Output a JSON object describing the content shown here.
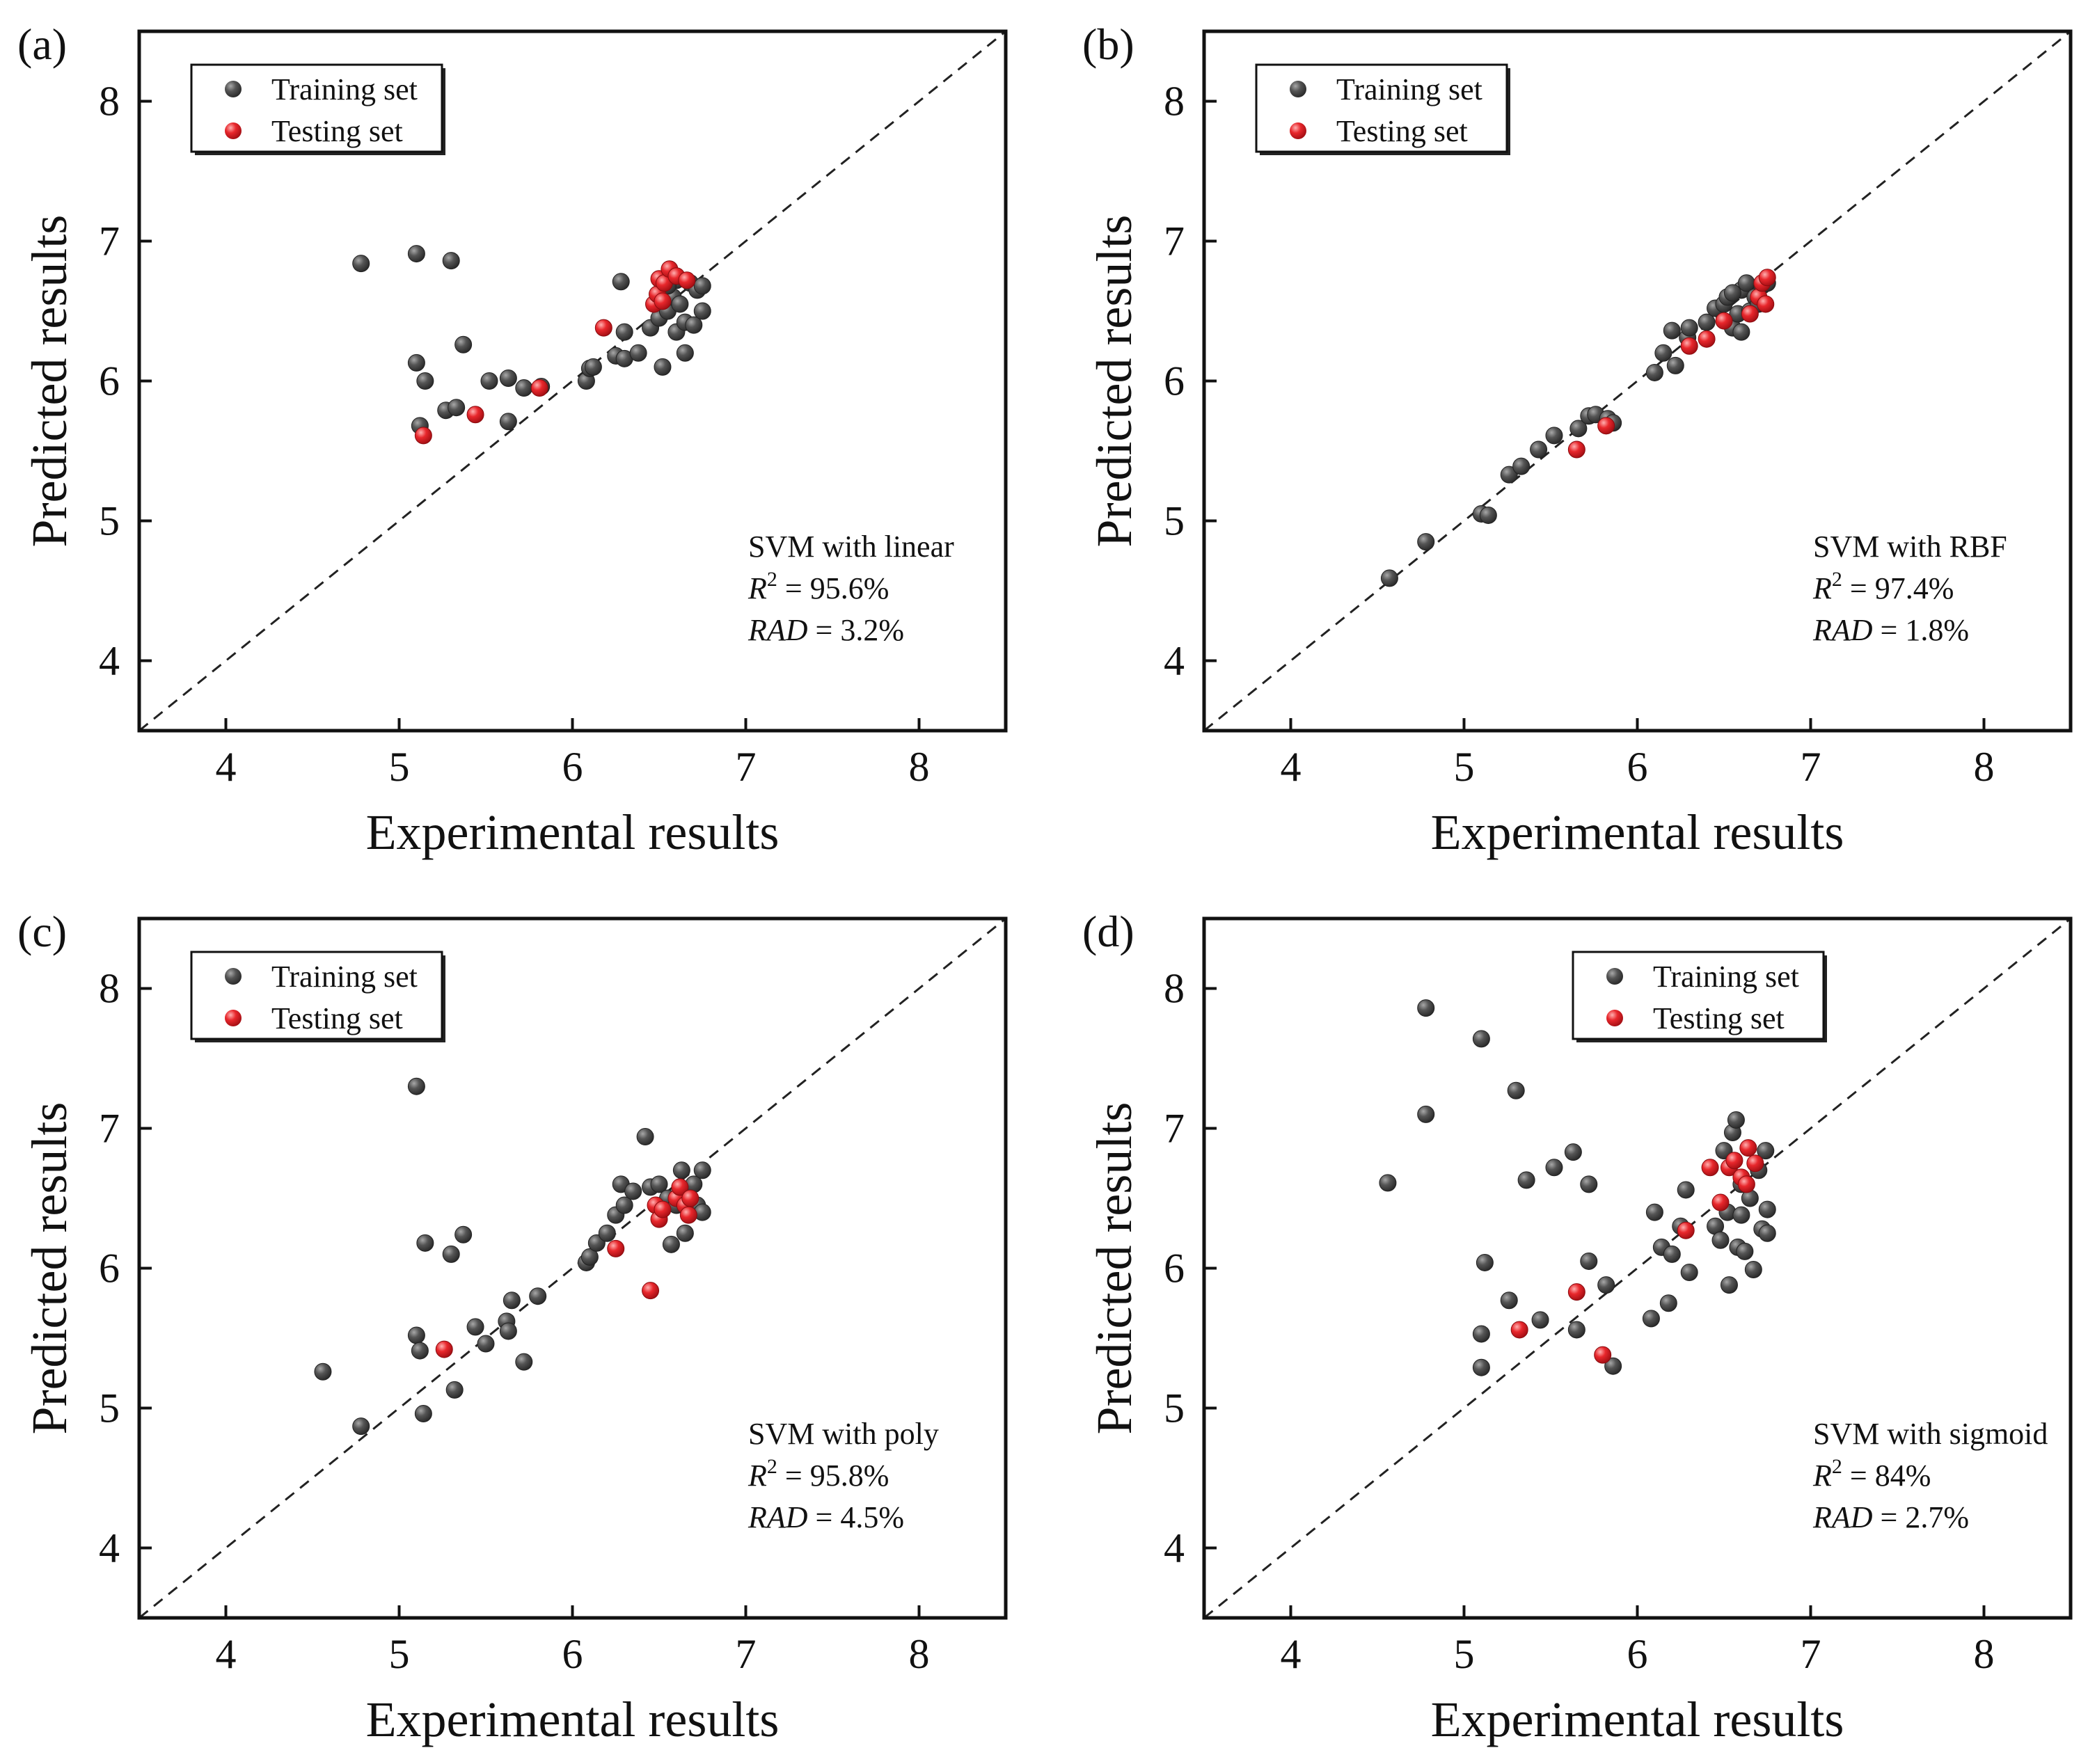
{
  "colors": {
    "training": "#4d4d4d",
    "training_highlight": "#9a9a9a",
    "testing": "#e0262b",
    "testing_highlight": "#ff9a9a",
    "axis": "#111111",
    "diagonal": "#222222"
  },
  "chart_data": [
    {
      "type": "scatter",
      "panel_label": "(a)",
      "xlabel": "Experimental results",
      "ylabel": "Predicted results",
      "xlim": [
        3.5,
        8.5
      ],
      "ylim": [
        3.5,
        8.5
      ],
      "xticks": [
        "4",
        "5",
        "6",
        "7",
        "8"
      ],
      "yticks": [
        "4",
        "5",
        "6",
        "7",
        "8"
      ],
      "legend": {
        "placement": "top-left",
        "entries": [
          "Training set",
          "Testing set"
        ]
      },
      "annotation": {
        "model": "SVM with linear",
        "r2_label": "R",
        "r2_sup": "2",
        "r2_value": " = 95.6%",
        "rad_label": "RAD",
        "rad_value": " = 3.2%"
      },
      "reference_line": "y = x",
      "series": [
        {
          "name": "Training set",
          "points": [
            [
              4.78,
              6.84
            ],
            [
              5.1,
              6.91
            ],
            [
              5.3,
              6.86
            ],
            [
              5.1,
              6.13
            ],
            [
              5.15,
              6.0
            ],
            [
              5.37,
              6.26
            ],
            [
              5.27,
              5.79
            ],
            [
              5.33,
              5.81
            ],
            [
              5.52,
              6.0
            ],
            [
              5.63,
              6.02
            ],
            [
              5.12,
              5.68
            ],
            [
              5.63,
              5.71
            ],
            [
              5.72,
              5.95
            ],
            [
              5.82,
              5.96
            ],
            [
              6.08,
              6.0
            ],
            [
              6.1,
              6.09
            ],
            [
              6.12,
              6.1
            ],
            [
              6.25,
              6.18
            ],
            [
              6.3,
              6.16
            ],
            [
              6.28,
              6.71
            ],
            [
              6.3,
              6.35
            ],
            [
              6.38,
              6.2
            ],
            [
              6.45,
              6.38
            ],
            [
              6.5,
              6.45
            ],
            [
              6.52,
              6.1
            ],
            [
              6.55,
              6.5
            ],
            [
              6.58,
              6.6
            ],
            [
              6.6,
              6.35
            ],
            [
              6.62,
              6.55
            ],
            [
              6.65,
              6.2
            ],
            [
              6.65,
              6.42
            ],
            [
              6.68,
              6.7
            ],
            [
              6.7,
              6.4
            ],
            [
              6.72,
              6.65
            ],
            [
              6.75,
              6.5
            ],
            [
              6.75,
              6.68
            ],
            [
              6.6,
              6.72
            ],
            [
              6.55,
              6.68
            ]
          ]
        },
        {
          "name": "Testing set",
          "points": [
            [
              5.14,
              5.61
            ],
            [
              5.44,
              5.76
            ],
            [
              5.81,
              5.95
            ],
            [
              6.18,
              6.38
            ],
            [
              6.47,
              6.55
            ],
            [
              6.49,
              6.62
            ],
            [
              6.5,
              6.73
            ],
            [
              6.53,
              6.7
            ],
            [
              6.56,
              6.8
            ],
            [
              6.6,
              6.75
            ],
            [
              6.66,
              6.72
            ],
            [
              6.52,
              6.57
            ]
          ]
        }
      ]
    },
    {
      "type": "scatter",
      "panel_label": "(b)",
      "xlabel": "Experimental results",
      "ylabel": "Predicted results",
      "xlim": [
        3.5,
        8.5
      ],
      "ylim": [
        3.5,
        8.5
      ],
      "xticks": [
        "4",
        "5",
        "6",
        "7",
        "8"
      ],
      "yticks": [
        "4",
        "5",
        "6",
        "7",
        "8"
      ],
      "legend": {
        "placement": "top-left",
        "entries": [
          "Training set",
          "Testing set"
        ]
      },
      "annotation": {
        "model": "SVM with RBF",
        "r2_label": "R",
        "r2_sup": "2",
        "r2_value": " = 97.4%",
        "rad_label": "RAD",
        "rad_value": " = 1.8%"
      },
      "reference_line": "y = x",
      "series": [
        {
          "name": "Training set",
          "points": [
            [
              4.57,
              4.59
            ],
            [
              4.78,
              4.85
            ],
            [
              5.1,
              5.05
            ],
            [
              5.14,
              5.04
            ],
            [
              5.26,
              5.33
            ],
            [
              5.33,
              5.39
            ],
            [
              5.43,
              5.51
            ],
            [
              5.52,
              5.61
            ],
            [
              5.66,
              5.66
            ],
            [
              5.72,
              5.75
            ],
            [
              5.76,
              5.76
            ],
            [
              5.83,
              5.73
            ],
            [
              5.86,
              5.7
            ],
            [
              6.1,
              6.06
            ],
            [
              6.15,
              6.2
            ],
            [
              6.2,
              6.36
            ],
            [
              6.22,
              6.11
            ],
            [
              6.29,
              6.31
            ],
            [
              6.3,
              6.38
            ],
            [
              6.4,
              6.42
            ],
            [
              6.45,
              6.52
            ],
            [
              6.5,
              6.55
            ],
            [
              6.52,
              6.6
            ],
            [
              6.55,
              6.38
            ],
            [
              6.58,
              6.48
            ],
            [
              6.6,
              6.65
            ],
            [
              6.63,
              6.7
            ],
            [
              6.65,
              6.5
            ],
            [
              6.68,
              6.6
            ],
            [
              6.7,
              6.55
            ],
            [
              6.72,
              6.68
            ],
            [
              6.75,
              6.7
            ],
            [
              6.55,
              6.63
            ],
            [
              6.6,
              6.35
            ]
          ]
        },
        {
          "name": "Testing set",
          "points": [
            [
              5.65,
              5.51
            ],
            [
              5.82,
              5.68
            ],
            [
              6.3,
              6.25
            ],
            [
              6.4,
              6.3
            ],
            [
              6.5,
              6.43
            ],
            [
              6.65,
              6.48
            ],
            [
              6.7,
              6.6
            ],
            [
              6.72,
              6.7
            ],
            [
              6.74,
              6.55
            ],
            [
              6.75,
              6.74
            ]
          ]
        }
      ]
    },
    {
      "type": "scatter",
      "panel_label": "(c)",
      "xlabel": "Experimental results",
      "ylabel": "Predicted results",
      "xlim": [
        3.5,
        8.5
      ],
      "ylim": [
        3.5,
        8.5
      ],
      "xticks": [
        "4",
        "5",
        "6",
        "7",
        "8"
      ],
      "yticks": [
        "4",
        "5",
        "6",
        "7",
        "8"
      ],
      "legend": {
        "placement": "top-left",
        "entries": [
          "Training set",
          "Testing set"
        ]
      },
      "annotation": {
        "model": "SVM with poly",
        "r2_label": "R",
        "r2_sup": "2",
        "r2_value": " = 95.8%",
        "rad_label": "RAD",
        "rad_value": " = 4.5%"
      },
      "reference_line": "y = x",
      "series": [
        {
          "name": "Training set",
          "points": [
            [
              4.56,
              5.26
            ],
            [
              4.78,
              4.87
            ],
            [
              5.1,
              7.3
            ],
            [
              5.1,
              5.52
            ],
            [
              5.12,
              5.41
            ],
            [
              5.14,
              4.96
            ],
            [
              5.15,
              6.18
            ],
            [
              5.3,
              6.1
            ],
            [
              5.32,
              5.13
            ],
            [
              5.37,
              6.24
            ],
            [
              5.44,
              5.58
            ],
            [
              5.5,
              5.46
            ],
            [
              5.62,
              5.62
            ],
            [
              5.63,
              5.55
            ],
            [
              5.65,
              5.77
            ],
            [
              5.72,
              5.33
            ],
            [
              5.8,
              5.8
            ],
            [
              6.08,
              6.04
            ],
            [
              6.1,
              6.08
            ],
            [
              6.14,
              6.18
            ],
            [
              6.2,
              6.25
            ],
            [
              6.25,
              6.38
            ],
            [
              6.28,
              6.6
            ],
            [
              6.3,
              6.45
            ],
            [
              6.35,
              6.55
            ],
            [
              6.42,
              6.94
            ],
            [
              6.45,
              6.58
            ],
            [
              6.5,
              6.6
            ],
            [
              6.55,
              6.5
            ],
            [
              6.57,
              6.17
            ],
            [
              6.6,
              6.45
            ],
            [
              6.63,
              6.7
            ],
            [
              6.65,
              6.25
            ],
            [
              6.7,
              6.6
            ],
            [
              6.72,
              6.45
            ],
            [
              6.75,
              6.7
            ],
            [
              6.75,
              6.4
            ]
          ]
        },
        {
          "name": "Testing set",
          "points": [
            [
              5.26,
              5.42
            ],
            [
              6.25,
              6.14
            ],
            [
              6.45,
              5.84
            ],
            [
              6.48,
              6.45
            ],
            [
              6.5,
              6.35
            ],
            [
              6.52,
              6.42
            ],
            [
              6.6,
              6.5
            ],
            [
              6.62,
              6.58
            ],
            [
              6.65,
              6.45
            ],
            [
              6.67,
              6.38
            ],
            [
              6.68,
              6.5
            ]
          ]
        }
      ]
    },
    {
      "type": "scatter",
      "panel_label": "(d)",
      "xlabel": "Experimental results",
      "ylabel": "Predicted results",
      "xlim": [
        3.5,
        8.5
      ],
      "ylim": [
        3.5,
        8.5
      ],
      "xticks": [
        "4",
        "5",
        "6",
        "7",
        "8"
      ],
      "yticks": [
        "4",
        "5",
        "6",
        "7",
        "8"
      ],
      "legend": {
        "placement": "top-right",
        "entries": [
          "Training set",
          "Testing set"
        ]
      },
      "annotation": {
        "model": "SVM with sigmoid",
        "r2_label": "R",
        "r2_sup": "2",
        "r2_value": " = 84%",
        "rad_label": "RAD",
        "rad_value": " = 2.7%"
      },
      "reference_line": "y = x",
      "series": [
        {
          "name": "Training set",
          "points": [
            [
              4.56,
              6.61
            ],
            [
              4.78,
              7.86
            ],
            [
              4.78,
              7.1
            ],
            [
              5.1,
              7.64
            ],
            [
              5.1,
              5.53
            ],
            [
              5.1,
              5.29
            ],
            [
              5.12,
              6.04
            ],
            [
              5.26,
              5.77
            ],
            [
              5.3,
              7.27
            ],
            [
              5.36,
              6.63
            ],
            [
              5.44,
              5.63
            ],
            [
              5.52,
              6.72
            ],
            [
              5.63,
              6.83
            ],
            [
              5.65,
              5.56
            ],
            [
              5.72,
              6.6
            ],
            [
              5.72,
              6.05
            ],
            [
              5.82,
              5.88
            ],
            [
              5.86,
              5.3
            ],
            [
              6.08,
              5.64
            ],
            [
              6.1,
              6.4
            ],
            [
              6.14,
              6.15
            ],
            [
              6.18,
              5.75
            ],
            [
              6.2,
              6.1
            ],
            [
              6.25,
              6.3
            ],
            [
              6.28,
              6.56
            ],
            [
              6.3,
              5.97
            ],
            [
              6.45,
              6.3
            ],
            [
              6.48,
              6.2
            ],
            [
              6.5,
              6.84
            ],
            [
              6.52,
              6.4
            ],
            [
              6.55,
              6.97
            ],
            [
              6.57,
              7.06
            ],
            [
              6.58,
              6.15
            ],
            [
              6.6,
              6.6
            ],
            [
              6.62,
              6.12
            ],
            [
              6.65,
              6.5
            ],
            [
              6.67,
              5.99
            ],
            [
              6.7,
              6.7
            ],
            [
              6.72,
              6.28
            ],
            [
              6.74,
              6.84
            ],
            [
              6.75,
              6.42
            ],
            [
              6.75,
              6.25
            ],
            [
              6.53,
              5.88
            ],
            [
              6.6,
              6.38
            ]
          ]
        },
        {
          "name": "Testing set",
          "points": [
            [
              5.32,
              5.56
            ],
            [
              5.65,
              5.83
            ],
            [
              5.8,
              5.38
            ],
            [
              6.28,
              6.27
            ],
            [
              6.42,
              6.72
            ],
            [
              6.48,
              6.47
            ],
            [
              6.53,
              6.72
            ],
            [
              6.56,
              6.77
            ],
            [
              6.6,
              6.65
            ],
            [
              6.63,
              6.6
            ],
            [
              6.64,
              6.86
            ],
            [
              6.68,
              6.75
            ]
          ]
        }
      ]
    }
  ]
}
